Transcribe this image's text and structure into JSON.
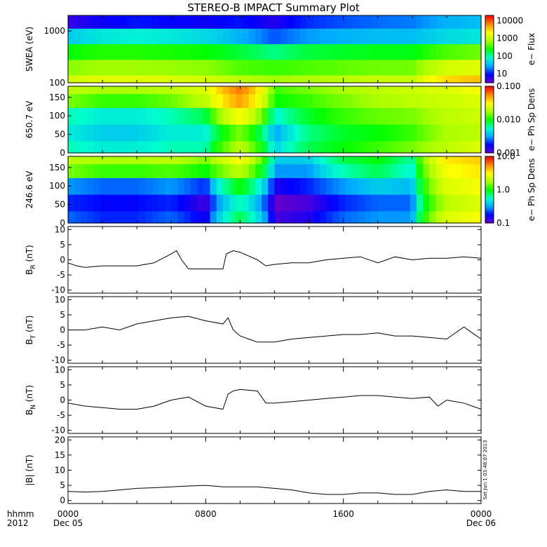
{
  "title": "STEREO-B IMPACT Summary Plot",
  "footer": {
    "left_top": "hhmm",
    "left_bottom": "2012",
    "ticks": [
      {
        "top": "0000",
        "bottom": "Dec 05"
      },
      {
        "top": "0800",
        "bottom": ""
      },
      {
        "top": "1600",
        "bottom": ""
      },
      {
        "top": "0000",
        "bottom": "Dec 06"
      }
    ],
    "timestamp": "Sat Jun 1 03:48:07 2013"
  },
  "chart_data": [
    {
      "type": "heatmap",
      "ylabel": "SWEA (eV)",
      "yscale": "log",
      "ylim": [
        100,
        2000
      ],
      "yticks": [
        "1000",
        "100"
      ],
      "colorbar": {
        "label": "e− Flux",
        "scale": "log",
        "range": [
          3,
          20000
        ],
        "ticks": [
          "10000",
          "1000",
          "100",
          "10"
        ]
      },
      "colorscale": [
        "#6600cc",
        "#0000ff",
        "#00aaff",
        "#00ffcc",
        "#00ff00",
        "#aaff00",
        "#ffff00",
        "#ff8800",
        "#ff0000"
      ],
      "x": [
        0,
        2,
        4,
        6,
        8,
        10,
        12,
        14,
        16,
        18,
        20,
        22,
        24
      ],
      "y": [
        100,
        200,
        400,
        800,
        1600
      ],
      "z": [
        [
          1200,
          1500,
          1500,
          1400,
          1200,
          900,
          700,
          800,
          900,
          1100,
          1000,
          3000,
          4000
        ],
        [
          600,
          700,
          700,
          650,
          600,
          400,
          350,
          400,
          450,
          500,
          500,
          1200,
          1500
        ],
        [
          250,
          300,
          300,
          280,
          250,
          180,
          120,
          180,
          200,
          220,
          220,
          400,
          500
        ],
        [
          40,
          60,
          70,
          60,
          50,
          30,
          15,
          25,
          30,
          35,
          35,
          50,
          60
        ],
        [
          5,
          8,
          10,
          9,
          8,
          10,
          6,
          12,
          15,
          18,
          20,
          30,
          35
        ]
      ]
    },
    {
      "type": "heatmap",
      "ylabel": "650.7 eV",
      "ylim": [
        0,
        180
      ],
      "yticks": [
        "150",
        "100",
        "50",
        "0"
      ],
      "colorbar": {
        "label": "e− Ph Sp Dens",
        "scale": "log",
        "range": [
          0.001,
          0.1
        ],
        "ticks": [
          "0.100",
          "0.010",
          "0.001"
        ]
      },
      "colorscale": [
        "#6600cc",
        "#0000ff",
        "#00aaff",
        "#00ffcc",
        "#00ff00",
        "#aaff00",
        "#ffff00",
        "#ff8800",
        "#ff0000"
      ],
      "x": [
        0,
        2,
        4,
        6,
        8,
        10,
        12,
        14,
        16,
        18,
        20,
        22,
        24
      ],
      "y": [
        10,
        55,
        100,
        145,
        175
      ],
      "z": [
        [
          0.006,
          0.005,
          0.005,
          0.006,
          0.006,
          0.02,
          0.004,
          0.008,
          0.01,
          0.012,
          0.015,
          0.02,
          0.025
        ],
        [
          0.005,
          0.004,
          0.004,
          0.005,
          0.005,
          0.015,
          0.003,
          0.007,
          0.009,
          0.01,
          0.012,
          0.018,
          0.02
        ],
        [
          0.006,
          0.005,
          0.005,
          0.006,
          0.008,
          0.03,
          0.005,
          0.009,
          0.012,
          0.014,
          0.015,
          0.02,
          0.022
        ],
        [
          0.015,
          0.012,
          0.012,
          0.014,
          0.02,
          0.05,
          0.01,
          0.012,
          0.015,
          0.018,
          0.02,
          0.022,
          0.025
        ],
        [
          0.02,
          0.018,
          0.018,
          0.02,
          0.025,
          0.06,
          0.012,
          0.015,
          0.018,
          0.02,
          0.022,
          0.025,
          0.03
        ]
      ]
    },
    {
      "type": "heatmap",
      "ylabel": "246.6 eV",
      "ylim": [
        0,
        180
      ],
      "yticks": [
        "150",
        "100",
        "50",
        "0"
      ],
      "colorbar": {
        "label": "e− Ph Sp Dens",
        "scale": "log",
        "range": [
          0.1,
          10
        ],
        "ticks": [
          "10.0",
          "1.0",
          "0.1"
        ]
      },
      "colorscale": [
        "#6600cc",
        "#0000ff",
        "#00aaff",
        "#00ffcc",
        "#00ff00",
        "#aaff00",
        "#ffff00",
        "#ff8800",
        "#ff0000"
      ],
      "x": [
        0,
        2,
        4,
        6,
        8,
        10,
        12,
        14,
        16,
        18,
        20,
        22,
        24
      ],
      "y": [
        10,
        55,
        100,
        145,
        175
      ],
      "z": [
        [
          0.25,
          0.2,
          0.2,
          0.25,
          0.15,
          0.8,
          0.12,
          0.15,
          0.25,
          0.3,
          0.3,
          2.5,
          3.0
        ],
        [
          0.2,
          0.18,
          0.18,
          0.2,
          0.12,
          0.6,
          0.1,
          0.12,
          0.2,
          0.25,
          0.25,
          2.0,
          2.5
        ],
        [
          0.3,
          0.25,
          0.25,
          0.3,
          0.2,
          1.0,
          0.15,
          0.2,
          0.3,
          0.4,
          0.35,
          2.5,
          3.0
        ],
        [
          1.5,
          1.2,
          1.2,
          1.3,
          1.0,
          2.0,
          0.3,
          0.3,
          0.6,
          0.8,
          0.5,
          3.0,
          3.5
        ],
        [
          2.0,
          1.8,
          1.8,
          2.0,
          1.5,
          3.0,
          0.4,
          0.4,
          0.8,
          1.0,
          0.6,
          3.5,
          4.0
        ]
      ]
    },
    {
      "type": "line",
      "ylabel": "B",
      "ylabel_sub": "R",
      "yunit": "(nT)",
      "ylim": [
        -11,
        11
      ],
      "yticks": [
        {
          "v": 10,
          "t": "10"
        },
        {
          "v": 5,
          "t": "5"
        },
        {
          "v": 0,
          "t": "0"
        },
        {
          "v": -5,
          "t": "-5"
        },
        {
          "v": -10,
          "t": "-10"
        }
      ],
      "x": [
        0,
        0.5,
        1,
        2,
        3,
        4,
        5,
        6,
        6.3,
        6.6,
        7,
        8,
        9,
        9.2,
        9.6,
        10,
        11,
        11.5,
        12,
        13,
        14,
        15,
        16,
        17,
        18,
        19,
        20,
        21,
        22,
        23,
        24
      ],
      "y": [
        -1,
        -2,
        -2.5,
        -2,
        -2,
        -2,
        -1,
        2,
        3,
        0,
        -3,
        -3,
        -3,
        2,
        3,
        2.5,
        0,
        -2,
        -1.5,
        -1,
        -1,
        0,
        0.5,
        1,
        -1,
        1,
        0,
        0.5,
        0.5,
        1,
        0.5
      ]
    },
    {
      "type": "line",
      "ylabel": "B",
      "ylabel_sub": "T",
      "yunit": "(nT)",
      "ylim": [
        -11,
        11
      ],
      "yticks": [
        {
          "v": 10,
          "t": "10"
        },
        {
          "v": 5,
          "t": "5"
        },
        {
          "v": 0,
          "t": "0"
        },
        {
          "v": -5,
          "t": "-5"
        },
        {
          "v": -10,
          "t": "-10"
        }
      ],
      "x": [
        0,
        1,
        2,
        3,
        4,
        5,
        6,
        7,
        8,
        9,
        9.3,
        9.6,
        10,
        10.5,
        11,
        12,
        13,
        14,
        15,
        16,
        17,
        18,
        19,
        20,
        21,
        22,
        23,
        23.5,
        24
      ],
      "y": [
        0,
        0,
        1,
        0,
        2,
        3,
        4,
        4.5,
        3,
        2,
        4,
        0,
        -2,
        -3,
        -4,
        -4,
        -3,
        -2.5,
        -2,
        -1.5,
        -1.5,
        -1,
        -2,
        -2,
        -2.5,
        -3,
        1,
        -1,
        -3
      ]
    },
    {
      "type": "line",
      "ylabel": "B",
      "ylabel_sub": "N",
      "yunit": "(nT)",
      "ylim": [
        -11,
        11
      ],
      "yticks": [
        {
          "v": 10,
          "t": "10"
        },
        {
          "v": 5,
          "t": "5"
        },
        {
          "v": 0,
          "t": "0"
        },
        {
          "v": -5,
          "t": "-5"
        },
        {
          "v": -10,
          "t": "-10"
        }
      ],
      "x": [
        0,
        1,
        2,
        3,
        4,
        5,
        6,
        7,
        8,
        9,
        9.3,
        9.6,
        10,
        11,
        11.5,
        12,
        13,
        14,
        15,
        16,
        17,
        18,
        19,
        20,
        21,
        21.5,
        22,
        23,
        24
      ],
      "y": [
        -1,
        -2,
        -2.5,
        -3,
        -3,
        -2,
        0,
        1,
        -2,
        -3,
        2,
        3,
        3.5,
        3,
        -1,
        -1,
        -0.5,
        0,
        0.5,
        1,
        1.5,
        1.5,
        1,
        0.5,
        1,
        -2,
        0,
        -1,
        -3
      ]
    },
    {
      "type": "line",
      "ylabel": "|B|",
      "yunit": "(nT)",
      "ylim": [
        -1,
        21
      ],
      "yticks": [
        {
          "v": 20,
          "t": "20"
        },
        {
          "v": 15,
          "t": "15"
        },
        {
          "v": 10,
          "t": "10"
        },
        {
          "v": 5,
          "t": "5"
        },
        {
          "v": 0,
          "t": "0"
        }
      ],
      "x": [
        0,
        1,
        2,
        3,
        4,
        5,
        6,
        7,
        8,
        9,
        10,
        11,
        12,
        13,
        14,
        15,
        16,
        17,
        18,
        19,
        20,
        21,
        22,
        23,
        24
      ],
      "y": [
        3,
        2.8,
        3,
        3.5,
        4,
        4.2,
        4.5,
        4.8,
        5,
        4.5,
        4.5,
        4.5,
        4,
        3.5,
        2.5,
        2,
        2,
        2.5,
        2.5,
        2,
        2,
        3,
        3.5,
        3,
        3
      ]
    }
  ]
}
